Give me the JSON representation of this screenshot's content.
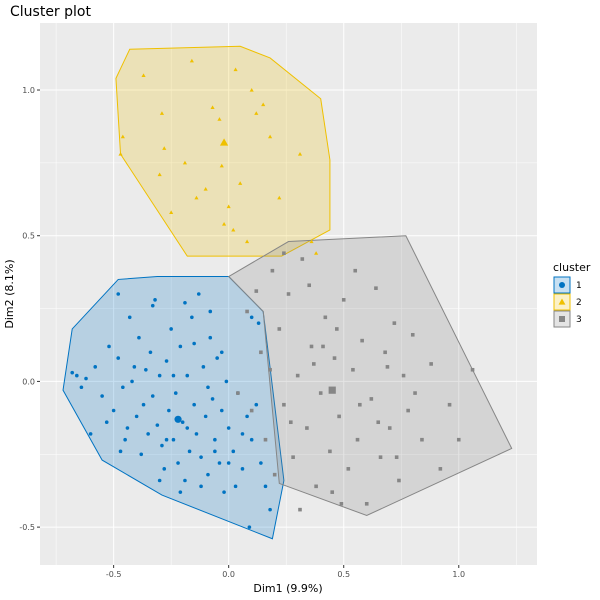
{
  "chart_data": {
    "type": "scatter",
    "title": "Cluster plot",
    "xlabel": "Dim1 (9.9%)",
    "ylabel": "Dim2 (8.1%)",
    "xlim": [
      -0.82,
      1.34
    ],
    "ylim": [
      -0.63,
      1.23
    ],
    "x_ticks": [
      -0.5,
      0.0,
      0.5,
      1.0
    ],
    "x_tick_labels": [
      "-0.5",
      "0.0",
      "0.5",
      "1.0"
    ],
    "y_ticks": [
      -0.5,
      0.0,
      0.5,
      1.0
    ],
    "y_tick_labels": [
      "-0.5",
      "0.0",
      "0.5",
      "1.0"
    ],
    "grid": true,
    "legend": {
      "title": "cluster",
      "position": "right"
    },
    "series": [
      {
        "name": "1",
        "color": "#0073C2",
        "shape": "circle",
        "center": [
          -0.22,
          -0.13
        ],
        "hull": [
          [
            -0.72,
            -0.03
          ],
          [
            -0.68,
            0.18
          ],
          [
            -0.48,
            0.35
          ],
          [
            -0.31,
            0.36
          ],
          [
            0.0,
            0.36
          ],
          [
            0.15,
            0.24
          ],
          [
            0.24,
            -0.34
          ],
          [
            0.19,
            -0.54
          ],
          [
            -0.29,
            -0.39
          ],
          [
            -0.55,
            -0.27
          ]
        ],
        "points": [
          [
            -0.66,
            0.02
          ],
          [
            -0.62,
            0.01
          ],
          [
            -0.58,
            0.05
          ],
          [
            -0.55,
            -0.05
          ],
          [
            -0.52,
            0.12
          ],
          [
            -0.5,
            -0.1
          ],
          [
            -0.48,
            0.08
          ],
          [
            -0.46,
            -0.02
          ],
          [
            -0.45,
            -0.2
          ],
          [
            -0.43,
            0.22
          ],
          [
            -0.42,
            0.0
          ],
          [
            -0.4,
            -0.12
          ],
          [
            -0.39,
            0.15
          ],
          [
            -0.38,
            -0.25
          ],
          [
            -0.36,
            0.04
          ],
          [
            -0.35,
            -0.18
          ],
          [
            -0.34,
            0.1
          ],
          [
            -0.33,
            -0.05
          ],
          [
            -0.32,
            0.28
          ],
          [
            -0.31,
            -0.15
          ],
          [
            -0.3,
            0.02
          ],
          [
            -0.29,
            -0.22
          ],
          [
            -0.28,
            -0.3
          ],
          [
            -0.27,
            0.07
          ],
          [
            -0.26,
            -0.1
          ],
          [
            -0.25,
            0.18
          ],
          [
            -0.24,
            -0.2
          ],
          [
            -0.23,
            -0.04
          ],
          [
            -0.22,
            -0.28
          ],
          [
            -0.21,
            0.12
          ],
          [
            -0.2,
            -0.14
          ],
          [
            -0.19,
            -0.34
          ],
          [
            -0.18,
            0.02
          ],
          [
            -0.17,
            -0.24
          ],
          [
            -0.16,
            0.22
          ],
          [
            -0.15,
            -0.08
          ],
          [
            -0.14,
            -0.18
          ],
          [
            -0.13,
            0.3
          ],
          [
            -0.12,
            -0.26
          ],
          [
            -0.11,
            0.05
          ],
          [
            -0.1,
            -0.12
          ],
          [
            -0.09,
            -0.32
          ],
          [
            -0.08,
            0.15
          ],
          [
            -0.07,
            -0.06
          ],
          [
            -0.06,
            -0.2
          ],
          [
            -0.05,
            0.08
          ],
          [
            -0.04,
            -0.28
          ],
          [
            -0.03,
            -0.1
          ],
          [
            -0.02,
            -0.38
          ],
          [
            -0.01,
            0.0
          ],
          [
            0.0,
            -0.16
          ],
          [
            0.02,
            -0.24
          ],
          [
            0.04,
            -0.04
          ],
          [
            0.06,
            -0.3
          ],
          [
            0.08,
            -0.12
          ],
          [
            0.09,
            -0.5
          ],
          [
            0.1,
            -0.2
          ],
          [
            0.12,
            -0.08
          ],
          [
            0.14,
            -0.28
          ],
          [
            0.16,
            -0.36
          ],
          [
            0.18,
            -0.44
          ],
          [
            -0.6,
            -0.18
          ],
          [
            -0.53,
            -0.14
          ],
          [
            -0.47,
            -0.24
          ],
          [
            -0.44,
            -0.16
          ],
          [
            -0.41,
            0.05
          ],
          [
            -0.37,
            -0.08
          ],
          [
            -0.33,
            0.26
          ],
          [
            -0.3,
            -0.34
          ],
          [
            -0.27,
            -0.2
          ],
          [
            -0.24,
            0.02
          ],
          [
            -0.21,
            -0.38
          ],
          [
            -0.18,
            -0.16
          ],
          [
            -0.15,
            0.13
          ],
          [
            -0.12,
            -0.36
          ],
          [
            -0.09,
            -0.02
          ],
          [
            -0.06,
            -0.24
          ],
          [
            -0.03,
            0.1
          ],
          [
            0.0,
            -0.28
          ],
          [
            0.03,
            -0.36
          ],
          [
            0.06,
            -0.18
          ],
          [
            0.1,
            0.22
          ],
          [
            0.13,
            0.2
          ],
          [
            -0.19,
            0.27
          ],
          [
            -0.08,
            0.24
          ],
          [
            -0.48,
            0.3
          ],
          [
            -0.68,
            0.03
          ],
          [
            -0.64,
            -0.02
          ]
        ]
      },
      {
        "name": "2",
        "color": "#EFC000",
        "shape": "triangle",
        "center": [
          -0.02,
          0.82
        ],
        "hull": [
          [
            -0.49,
            1.04
          ],
          [
            -0.43,
            1.14
          ],
          [
            0.05,
            1.15
          ],
          [
            0.18,
            1.11
          ],
          [
            0.4,
            0.97
          ],
          [
            0.44,
            0.76
          ],
          [
            0.44,
            0.52
          ],
          [
            0.23,
            0.43
          ],
          [
            -0.18,
            0.43
          ],
          [
            -0.47,
            0.78
          ]
        ],
        "points": [
          [
            -0.46,
            0.84
          ],
          [
            -0.47,
            0.78
          ],
          [
            -0.37,
            1.05
          ],
          [
            -0.29,
            0.92
          ],
          [
            -0.3,
            0.71
          ],
          [
            -0.25,
            0.58
          ],
          [
            -0.19,
            0.75
          ],
          [
            -0.16,
            1.1
          ],
          [
            -0.14,
            0.63
          ],
          [
            -0.1,
            0.66
          ],
          [
            -0.07,
            0.94
          ],
          [
            -0.04,
            0.9
          ],
          [
            -0.03,
            0.74
          ],
          [
            -0.02,
            0.54
          ],
          [
            0.03,
            1.07
          ],
          [
            0.05,
            0.68
          ],
          [
            0.08,
            0.48
          ],
          [
            0.12,
            0.92
          ],
          [
            0.15,
            0.95
          ],
          [
            0.18,
            0.84
          ],
          [
            0.22,
            0.63
          ],
          [
            0.31,
            0.78
          ],
          [
            0.36,
            0.48
          ],
          [
            0.38,
            0.44
          ],
          [
            0.02,
            0.52
          ],
          [
            -0.28,
            0.8
          ],
          [
            0.1,
            1.0
          ],
          [
            0.0,
            0.6
          ]
        ]
      },
      {
        "name": "3",
        "color": "#868686",
        "shape": "square",
        "center": [
          0.45,
          -0.03
        ],
        "hull": [
          [
            0.0,
            0.36
          ],
          [
            0.26,
            0.48
          ],
          [
            0.77,
            0.5
          ],
          [
            1.23,
            -0.23
          ],
          [
            0.6,
            -0.46
          ],
          [
            0.22,
            -0.35
          ],
          [
            0.15,
            0.24
          ]
        ],
        "points": [
          [
            0.04,
            -0.04
          ],
          [
            0.08,
            0.24
          ],
          [
            0.1,
            -0.1
          ],
          [
            0.12,
            0.31
          ],
          [
            0.14,
            0.1
          ],
          [
            0.16,
            -0.2
          ],
          [
            0.18,
            0.04
          ],
          [
            0.2,
            -0.32
          ],
          [
            0.22,
            0.18
          ],
          [
            0.24,
            -0.08
          ],
          [
            0.26,
            0.3
          ],
          [
            0.28,
            -0.26
          ],
          [
            0.3,
            0.02
          ],
          [
            0.32,
            0.42
          ],
          [
            0.34,
            -0.16
          ],
          [
            0.36,
            0.12
          ],
          [
            0.38,
            -0.36
          ],
          [
            0.4,
            -0.04
          ],
          [
            0.42,
            0.22
          ],
          [
            0.44,
            -0.24
          ],
          [
            0.46,
            0.08
          ],
          [
            0.48,
            -0.12
          ],
          [
            0.5,
            0.28
          ],
          [
            0.52,
            -0.3
          ],
          [
            0.54,
            0.04
          ],
          [
            0.56,
            -0.2
          ],
          [
            0.58,
            0.14
          ],
          [
            0.6,
            -0.42
          ],
          [
            0.62,
            -0.06
          ],
          [
            0.64,
            0.32
          ],
          [
            0.66,
            -0.26
          ],
          [
            0.68,
            0.1
          ],
          [
            0.7,
            -0.16
          ],
          [
            0.72,
            0.2
          ],
          [
            0.74,
            -0.34
          ],
          [
            0.76,
            0.02
          ],
          [
            0.78,
            -0.1
          ],
          [
            0.8,
            0.16
          ],
          [
            0.84,
            -0.2
          ],
          [
            0.88,
            0.06
          ],
          [
            0.92,
            -0.3
          ],
          [
            0.96,
            -0.08
          ],
          [
            1.0,
            -0.2
          ],
          [
            1.06,
            0.04
          ],
          [
            0.27,
            -0.14
          ],
          [
            0.35,
            0.33
          ],
          [
            0.45,
            -0.38
          ],
          [
            0.55,
            0.38
          ],
          [
            0.65,
            -0.14
          ],
          [
            0.31,
            -0.44
          ],
          [
            0.41,
            0.12
          ],
          [
            0.57,
            -0.08
          ],
          [
            0.69,
            0.05
          ],
          [
            0.81,
            -0.04
          ],
          [
            0.19,
            0.38
          ],
          [
            0.24,
            0.44
          ],
          [
            0.37,
            0.06
          ],
          [
            0.47,
            0.18
          ],
          [
            0.73,
            -0.26
          ],
          [
            0.49,
            -0.42
          ]
        ]
      }
    ]
  }
}
